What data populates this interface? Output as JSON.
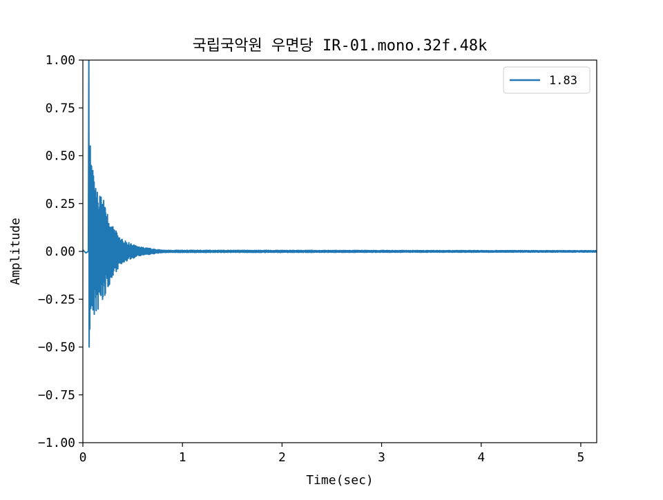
{
  "chart_data": {
    "type": "line",
    "title": "국립국악원 우면당 IR-01.mono.32f.48k",
    "xlabel": "Time(sec)",
    "ylabel": "Amplitude",
    "xlim": [
      0,
      5.16
    ],
    "ylim": [
      -1.0,
      1.0
    ],
    "xticks": [
      0,
      1,
      2,
      3,
      4,
      5
    ],
    "yticks": [
      -1.0,
      -0.75,
      -0.5,
      -0.25,
      0.0,
      0.25,
      0.5,
      0.75,
      1.0
    ],
    "xtick_labels": [
      "0",
      "1",
      "2",
      "3",
      "4",
      "5"
    ],
    "ytick_labels": [
      "−1.00",
      "−0.75",
      "−0.50",
      "−0.25",
      "0.00",
      "0.25",
      "0.50",
      "0.75",
      "1.00"
    ],
    "grid": false,
    "legend_position": "top-right",
    "series": [
      {
        "name": "1.83",
        "color": "#1f77b4",
        "description": "impulse response with direct peak near t=0.06 s and exponentially decaying tail",
        "envelope": [
          {
            "t": 0.0,
            "amp": 0.01
          },
          {
            "t": 0.05,
            "amp": 0.01
          },
          {
            "t": 0.06,
            "max": 1.0,
            "min": -0.5
          },
          {
            "t": 0.08,
            "max": 0.54,
            "min": -0.35
          },
          {
            "t": 0.12,
            "max": 0.35,
            "min": -0.35
          },
          {
            "t": 0.2,
            "max": 0.28,
            "min": -0.27
          },
          {
            "t": 0.3,
            "max": 0.13,
            "min": -0.13
          },
          {
            "t": 0.4,
            "max": 0.06,
            "min": -0.06
          },
          {
            "t": 0.55,
            "max": 0.025,
            "min": -0.025
          },
          {
            "t": 0.8,
            "max": 0.006,
            "min": -0.006
          },
          {
            "t": 5.16,
            "max": 0.004,
            "min": -0.004
          }
        ]
      }
    ]
  }
}
